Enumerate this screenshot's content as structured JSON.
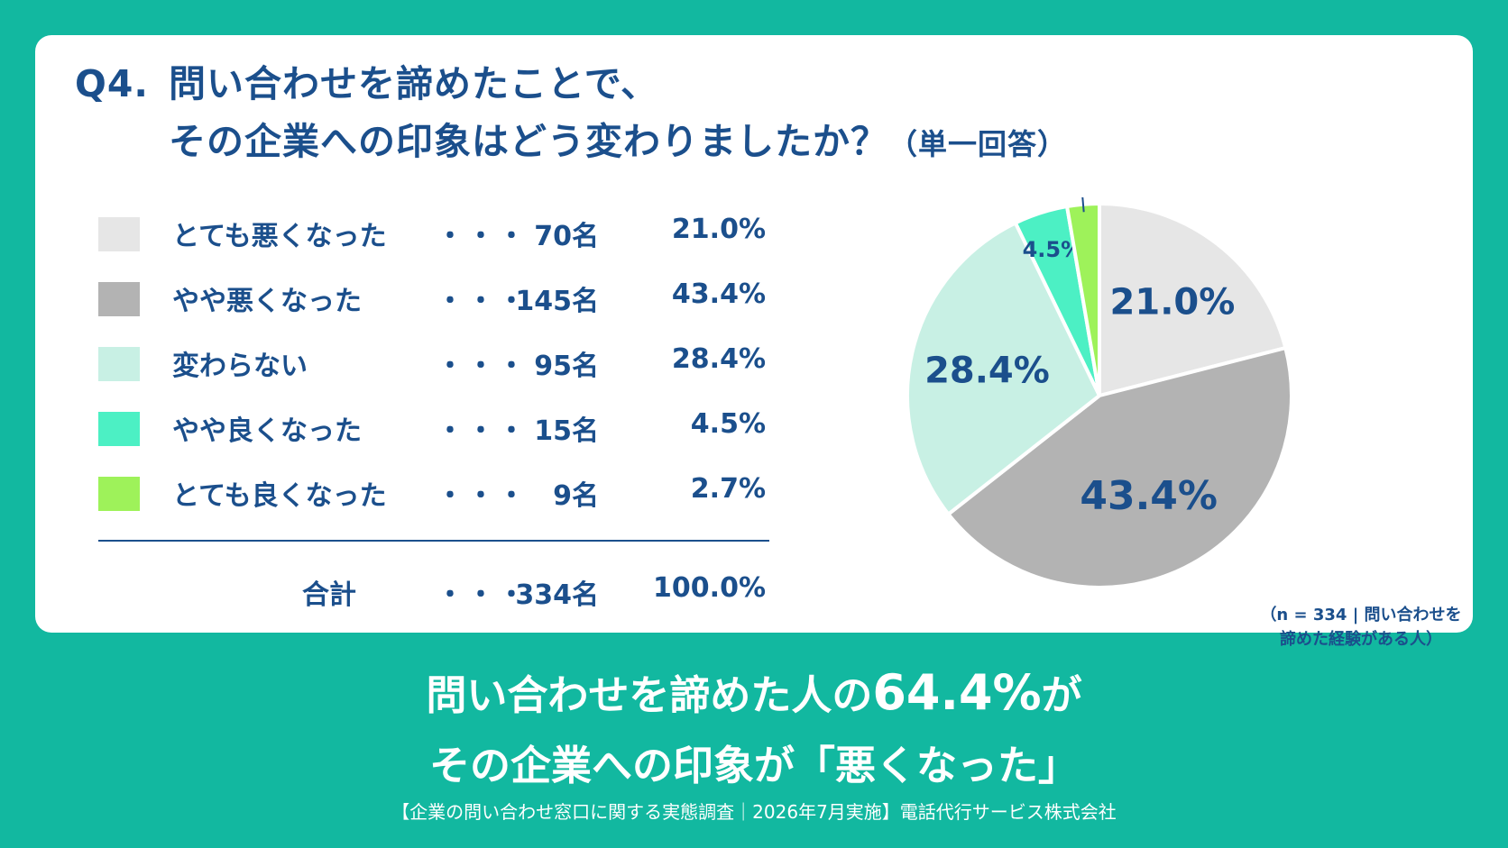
{
  "title": {
    "number": "Q4.",
    "line1": "問い合わせを諦めたことで、",
    "line2": "その企業への印象はどう変わりましたか？",
    "note": "（単一回答）"
  },
  "legend_dots": "・・・",
  "total": {
    "label": "合計",
    "count": "334名",
    "percent": "100.0%"
  },
  "sample_note": {
    "line1": "（n = 334 | 問い合わせを",
    "line2": "諦めた経験がある人）"
  },
  "headline": {
    "line1_pre": "問い合わせを諦めた人の",
    "line1_highlight": "64.4%",
    "line1_post": "が",
    "line2": "その企業への印象が「悪くなった」"
  },
  "source": "【企業の問い合わせ窓口に関する実態調査｜2026年7月実施】電話代行サービス株式会社",
  "colors": {
    "background": "#12b8a0",
    "text": "#1b4f8c",
    "card": "#ffffff"
  },
  "chart_data": {
    "type": "pie",
    "categories": [
      "とても悪くなった",
      "やや悪くなった",
      "変わらない",
      "やや良くなった",
      "とても良くなった"
    ],
    "counts": [
      70,
      145,
      95,
      15,
      9
    ],
    "count_labels": [
      "70名",
      "145名",
      "95名",
      "15名",
      "9名"
    ],
    "values": [
      21.0,
      43.4,
      28.4,
      4.5,
      2.7
    ],
    "value_labels": [
      "21.0%",
      "43.4%",
      "28.4%",
      "4.5%",
      "2.7%"
    ],
    "colors": [
      "#e6e6e6",
      "#b3b3b3",
      "#c8f0e4",
      "#4cf0c4",
      "#9ef25a"
    ],
    "legend_position": "left"
  }
}
